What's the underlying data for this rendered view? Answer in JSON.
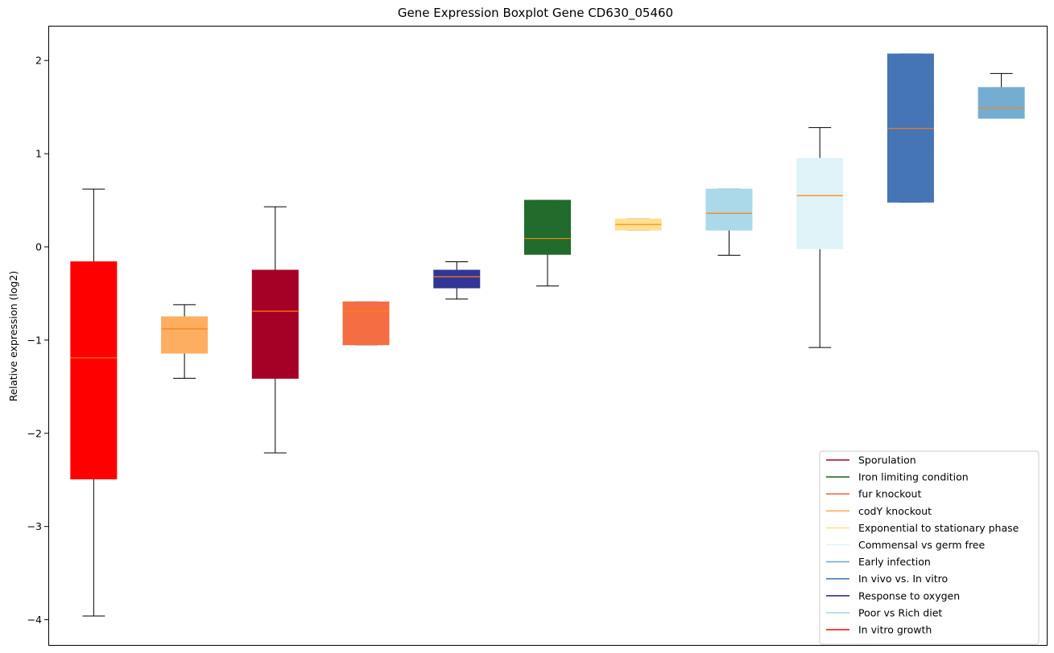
{
  "chart_data": {
    "type": "boxplot",
    "title": "Gene Expression Boxplot Gene CD630_05460",
    "xlabel": "",
    "ylabel": "Relative expression (log2)",
    "ylim": [
      -4.28,
      2.38
    ],
    "yticks": [
      2,
      1,
      0,
      -1,
      -2,
      -3,
      -4
    ],
    "ytick_labels": [
      "2",
      "1",
      "0",
      "−1",
      "−2",
      "−3",
      "−4"
    ],
    "grid": false,
    "legend_position": "lower-right",
    "median_color": "#ff7f0e",
    "boxes": [
      {
        "group": "In vitro growth",
        "color": "#ff0000",
        "whisker_low": -3.96,
        "q1": -2.49,
        "median": -1.19,
        "q3": -0.16,
        "whisker_high": 0.62
      },
      {
        "group": "codY knockout",
        "color": "#fdae61",
        "whisker_low": -1.41,
        "q1": -1.14,
        "median": -0.88,
        "q3": -0.75,
        "whisker_high": -0.62
      },
      {
        "group": "Sporulation",
        "color": "#a50026",
        "whisker_low": -2.21,
        "q1": -1.41,
        "median": -0.69,
        "q3": -0.25,
        "whisker_high": 0.43
      },
      {
        "group": "fur knockout",
        "color": "#f46d43",
        "whisker_low": -1.05,
        "q1": -1.05,
        "median": -0.69,
        "q3": -0.59,
        "whisker_high": -0.59
      },
      {
        "group": "Response to oxygen",
        "color": "#313695",
        "whisker_low": -0.56,
        "q1": -0.44,
        "median": -0.32,
        "q3": -0.25,
        "whisker_high": -0.16
      },
      {
        "group": "Iron limiting condition",
        "color": "#216b2c",
        "whisker_low": -0.42,
        "q1": -0.08,
        "median": 0.09,
        "q3": 0.5,
        "whisker_high": 0.5
      },
      {
        "group": "Exponential to stationary phase",
        "color": "#fee090",
        "whisker_low": 0.18,
        "q1": 0.18,
        "median": 0.24,
        "q3": 0.3,
        "whisker_high": 0.3
      },
      {
        "group": "Poor vs Rich diet",
        "color": "#abd9e9",
        "whisker_low": -0.09,
        "q1": 0.18,
        "median": 0.36,
        "q3": 0.62,
        "whisker_high": 0.62
      },
      {
        "group": "Commensal vs germ free",
        "color": "#e0f3f8",
        "whisker_low": -1.08,
        "q1": -0.02,
        "median": 0.55,
        "q3": 0.95,
        "whisker_high": 1.28
      },
      {
        "group": "In vivo vs. In vitro",
        "color": "#4575b4",
        "whisker_low": 0.48,
        "q1": 0.48,
        "median": 1.27,
        "q3": 2.07,
        "whisker_high": 2.07
      },
      {
        "group": "Early infection",
        "color": "#74add1",
        "whisker_low": 1.38,
        "q1": 1.38,
        "median": 1.49,
        "q3": 1.71,
        "whisker_high": 1.86
      }
    ],
    "legend": [
      {
        "label": "Sporulation",
        "color": "#a50026"
      },
      {
        "label": "Iron limiting condition",
        "color": "#216b2c"
      },
      {
        "label": "fur knockout",
        "color": "#f46d43"
      },
      {
        "label": "codY knockout",
        "color": "#fdae61"
      },
      {
        "label": "Exponential to stationary phase",
        "color": "#fee090"
      },
      {
        "label": "Commensal vs germ free",
        "color": "#e0f3f8"
      },
      {
        "label": "Early infection",
        "color": "#74add1"
      },
      {
        "label": "In vivo vs. In vitro",
        "color": "#4575b4"
      },
      {
        "label": "Response to oxygen",
        "color": "#313695"
      },
      {
        "label": "Poor vs Rich diet",
        "color": "#abd9e9"
      },
      {
        "label": "In vitro growth",
        "color": "#ff0000"
      }
    ]
  }
}
